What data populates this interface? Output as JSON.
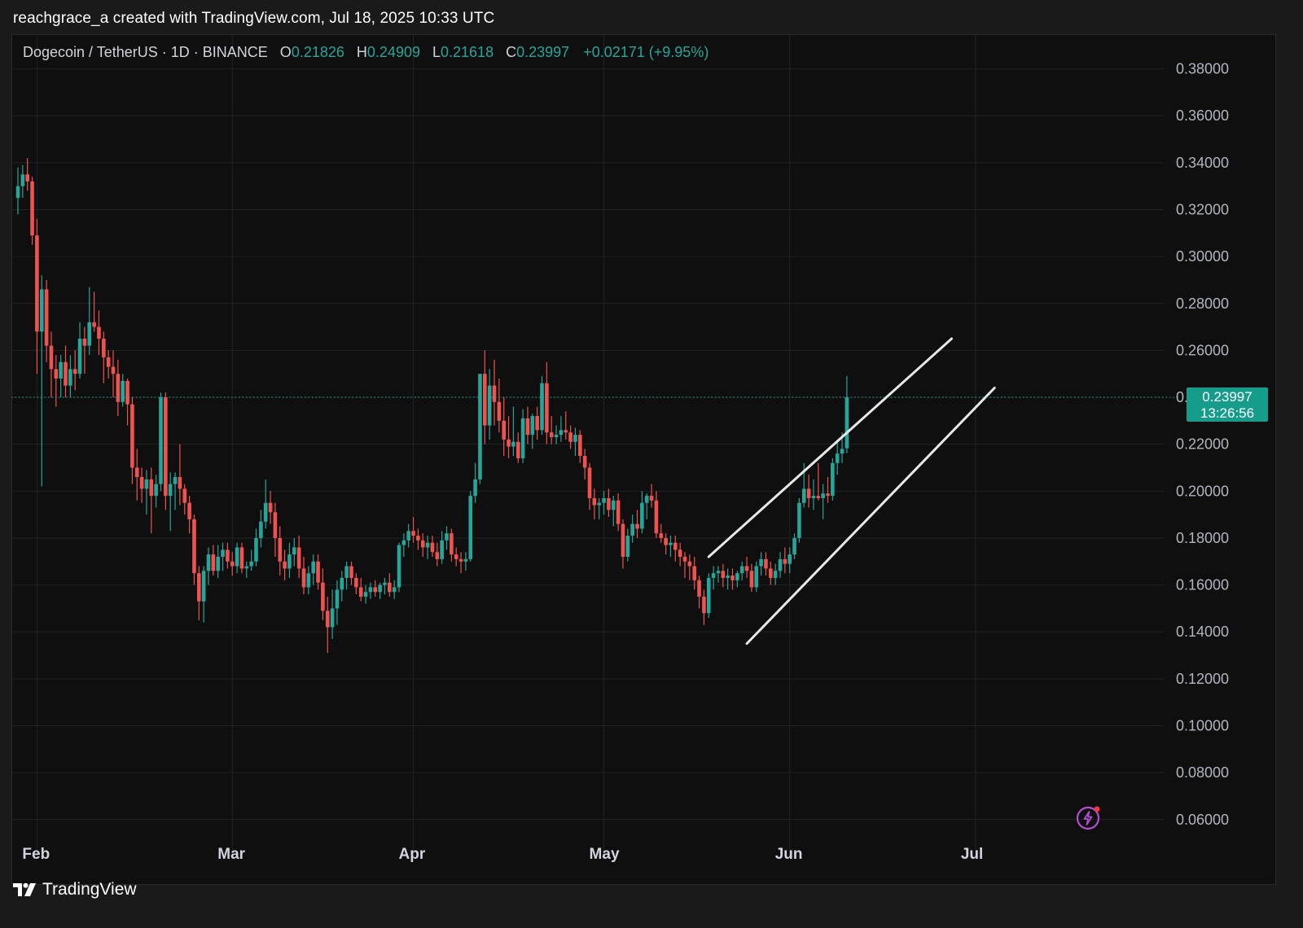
{
  "caption": "reachgrace_a created with TradingView.com, Jul 18, 2025 10:33 UTC",
  "legend": {
    "symbol": "Dogecoin / TetherUS · 1D · BINANCE",
    "open_key": "O",
    "open": "0.21826",
    "high_key": "H",
    "high": "0.24909",
    "low_key": "L",
    "low": "0.21618",
    "close_key": "C",
    "close": "0.23997",
    "change": "+0.02171 (+9.95%)"
  },
  "price_badge": {
    "price": "0.23997",
    "countdown": "13:26:56"
  },
  "footer": {
    "logo_text": "TradingView",
    "logo_icon": "tradingview-logo-icon"
  },
  "colors": {
    "up": "#26a69a",
    "down": "#ef5350",
    "background": "#0f0f0f",
    "grid": "#232323",
    "channel": "#e8e8e8",
    "badge": "#169c8a",
    "bolt": "#b04fd4"
  },
  "chart_data": {
    "type": "candlestick",
    "y_tick_labels": [
      "0.38000",
      "0.36000",
      "0.34000",
      "0.32000",
      "0.30000",
      "0.28000",
      "0.26000",
      "0.24000",
      "0.22000",
      "0.20000",
      "0.18000",
      "0.16000",
      "0.14000",
      "0.12000",
      "0.10000",
      "0.08000",
      "0.06000"
    ],
    "y_ticks": [
      0.38,
      0.36,
      0.34,
      0.32,
      0.3,
      0.28,
      0.26,
      0.24,
      0.22,
      0.2,
      0.18,
      0.16,
      0.14,
      0.12,
      0.1,
      0.08,
      0.06
    ],
    "x_tick_labels": [
      "Feb",
      "Mar",
      "Apr",
      "May",
      "Jun",
      "Jul"
    ],
    "ylim": [
      0.045,
      0.392
    ],
    "last_price": 0.23997,
    "channel": {
      "upper": [
        [
          145,
          0.172
        ],
        [
          196,
          0.265
        ]
      ],
      "lower": [
        [
          153,
          0.135
        ],
        [
          205,
          0.244
        ]
      ]
    },
    "candles_ohlc": [
      [
        0.325,
        0.338,
        0.318,
        0.33
      ],
      [
        0.33,
        0.339,
        0.325,
        0.335
      ],
      [
        0.335,
        0.342,
        0.328,
        0.332
      ],
      [
        0.332,
        0.334,
        0.305,
        0.309
      ],
      [
        0.309,
        0.316,
        0.25,
        0.268
      ],
      [
        0.268,
        0.292,
        0.202,
        0.286
      ],
      [
        0.286,
        0.29,
        0.255,
        0.262
      ],
      [
        0.262,
        0.268,
        0.24,
        0.252
      ],
      [
        0.252,
        0.258,
        0.236,
        0.248
      ],
      [
        0.248,
        0.258,
        0.24,
        0.255
      ],
      [
        0.255,
        0.262,
        0.24,
        0.245
      ],
      [
        0.245,
        0.258,
        0.24,
        0.252
      ],
      [
        0.252,
        0.26,
        0.243,
        0.25
      ],
      [
        0.25,
        0.272,
        0.248,
        0.265
      ],
      [
        0.265,
        0.27,
        0.25,
        0.262
      ],
      [
        0.262,
        0.287,
        0.258,
        0.272
      ],
      [
        0.272,
        0.285,
        0.268,
        0.27
      ],
      [
        0.27,
        0.277,
        0.258,
        0.265
      ],
      [
        0.265,
        0.268,
        0.246,
        0.257
      ],
      [
        0.257,
        0.26,
        0.248,
        0.253
      ],
      [
        0.253,
        0.26,
        0.24,
        0.25
      ],
      [
        0.25,
        0.256,
        0.232,
        0.238
      ],
      [
        0.238,
        0.25,
        0.236,
        0.247
      ],
      [
        0.247,
        0.248,
        0.228,
        0.237
      ],
      [
        0.237,
        0.24,
        0.203,
        0.21
      ],
      [
        0.21,
        0.218,
        0.196,
        0.206
      ],
      [
        0.206,
        0.21,
        0.195,
        0.201
      ],
      [
        0.201,
        0.209,
        0.19,
        0.205
      ],
      [
        0.205,
        0.21,
        0.182,
        0.198
      ],
      [
        0.198,
        0.207,
        0.193,
        0.203
      ],
      [
        0.203,
        0.242,
        0.2,
        0.24
      ],
      [
        0.24,
        0.242,
        0.192,
        0.198
      ],
      [
        0.198,
        0.208,
        0.183,
        0.203
      ],
      [
        0.203,
        0.208,
        0.192,
        0.206
      ],
      [
        0.206,
        0.22,
        0.194,
        0.201
      ],
      [
        0.201,
        0.203,
        0.19,
        0.195
      ],
      [
        0.195,
        0.198,
        0.182,
        0.188
      ],
      [
        0.188,
        0.19,
        0.16,
        0.165
      ],
      [
        0.165,
        0.168,
        0.145,
        0.153
      ],
      [
        0.153,
        0.168,
        0.144,
        0.166
      ],
      [
        0.166,
        0.176,
        0.16,
        0.173
      ],
      [
        0.173,
        0.177,
        0.164,
        0.166
      ],
      [
        0.166,
        0.177,
        0.163,
        0.172
      ],
      [
        0.172,
        0.178,
        0.166,
        0.175
      ],
      [
        0.175,
        0.178,
        0.167,
        0.17
      ],
      [
        0.17,
        0.174,
        0.164,
        0.168
      ],
      [
        0.168,
        0.178,
        0.165,
        0.176
      ],
      [
        0.176,
        0.178,
        0.165,
        0.167
      ],
      [
        0.167,
        0.17,
        0.163,
        0.168
      ],
      [
        0.168,
        0.175,
        0.166,
        0.17
      ],
      [
        0.17,
        0.184,
        0.168,
        0.18
      ],
      [
        0.18,
        0.192,
        0.176,
        0.187
      ],
      [
        0.187,
        0.205,
        0.184,
        0.195
      ],
      [
        0.195,
        0.2,
        0.186,
        0.191
      ],
      [
        0.191,
        0.195,
        0.172,
        0.18
      ],
      [
        0.18,
        0.185,
        0.164,
        0.17
      ],
      [
        0.17,
        0.175,
        0.162,
        0.167
      ],
      [
        0.167,
        0.178,
        0.163,
        0.173
      ],
      [
        0.173,
        0.18,
        0.168,
        0.176
      ],
      [
        0.176,
        0.181,
        0.163,
        0.167
      ],
      [
        0.167,
        0.172,
        0.156,
        0.159
      ],
      [
        0.159,
        0.168,
        0.156,
        0.165
      ],
      [
        0.165,
        0.173,
        0.16,
        0.17
      ],
      [
        0.17,
        0.173,
        0.158,
        0.161
      ],
      [
        0.161,
        0.167,
        0.145,
        0.149
      ],
      [
        0.149,
        0.155,
        0.131,
        0.142
      ],
      [
        0.142,
        0.158,
        0.137,
        0.15
      ],
      [
        0.15,
        0.162,
        0.143,
        0.158
      ],
      [
        0.158,
        0.166,
        0.153,
        0.163
      ],
      [
        0.163,
        0.17,
        0.158,
        0.168
      ],
      [
        0.168,
        0.17,
        0.16,
        0.163
      ],
      [
        0.163,
        0.165,
        0.156,
        0.159
      ],
      [
        0.159,
        0.163,
        0.153,
        0.155
      ],
      [
        0.155,
        0.16,
        0.152,
        0.157
      ],
      [
        0.157,
        0.161,
        0.154,
        0.159
      ],
      [
        0.159,
        0.162,
        0.155,
        0.157
      ],
      [
        0.157,
        0.161,
        0.154,
        0.16
      ],
      [
        0.16,
        0.163,
        0.156,
        0.161
      ],
      [
        0.161,
        0.165,
        0.155,
        0.157
      ],
      [
        0.157,
        0.162,
        0.154,
        0.159
      ],
      [
        0.159,
        0.178,
        0.157,
        0.177
      ],
      [
        0.177,
        0.182,
        0.172,
        0.179
      ],
      [
        0.179,
        0.186,
        0.176,
        0.183
      ],
      [
        0.183,
        0.189,
        0.178,
        0.181
      ],
      [
        0.181,
        0.184,
        0.175,
        0.179
      ],
      [
        0.179,
        0.182,
        0.172,
        0.176
      ],
      [
        0.176,
        0.181,
        0.171,
        0.178
      ],
      [
        0.178,
        0.181,
        0.172,
        0.174
      ],
      [
        0.174,
        0.178,
        0.168,
        0.171
      ],
      [
        0.171,
        0.183,
        0.169,
        0.179
      ],
      [
        0.179,
        0.185,
        0.175,
        0.182
      ],
      [
        0.182,
        0.184,
        0.17,
        0.173
      ],
      [
        0.173,
        0.176,
        0.168,
        0.171
      ],
      [
        0.171,
        0.174,
        0.165,
        0.17
      ],
      [
        0.17,
        0.174,
        0.166,
        0.171
      ],
      [
        0.171,
        0.2,
        0.17,
        0.198
      ],
      [
        0.198,
        0.212,
        0.195,
        0.205
      ],
      [
        0.205,
        0.25,
        0.203,
        0.25
      ],
      [
        0.25,
        0.26,
        0.22,
        0.228
      ],
      [
        0.228,
        0.252,
        0.222,
        0.245
      ],
      [
        0.245,
        0.256,
        0.228,
        0.238
      ],
      [
        0.238,
        0.248,
        0.225,
        0.23
      ],
      [
        0.23,
        0.24,
        0.215,
        0.222
      ],
      [
        0.222,
        0.232,
        0.214,
        0.219
      ],
      [
        0.219,
        0.236,
        0.215,
        0.221
      ],
      [
        0.221,
        0.225,
        0.212,
        0.214
      ],
      [
        0.214,
        0.235,
        0.212,
        0.231
      ],
      [
        0.231,
        0.236,
        0.22,
        0.224
      ],
      [
        0.224,
        0.233,
        0.218,
        0.232
      ],
      [
        0.232,
        0.236,
        0.222,
        0.226
      ],
      [
        0.226,
        0.249,
        0.224,
        0.246
      ],
      [
        0.246,
        0.255,
        0.22,
        0.225
      ],
      [
        0.225,
        0.232,
        0.22,
        0.223
      ],
      [
        0.223,
        0.228,
        0.22,
        0.224
      ],
      [
        0.224,
        0.232,
        0.221,
        0.226
      ],
      [
        0.226,
        0.234,
        0.222,
        0.225
      ],
      [
        0.225,
        0.228,
        0.218,
        0.221
      ],
      [
        0.221,
        0.227,
        0.215,
        0.224
      ],
      [
        0.224,
        0.226,
        0.212,
        0.215
      ],
      [
        0.215,
        0.218,
        0.205,
        0.21
      ],
      [
        0.21,
        0.212,
        0.192,
        0.197
      ],
      [
        0.197,
        0.201,
        0.188,
        0.194
      ],
      [
        0.194,
        0.197,
        0.188,
        0.195
      ],
      [
        0.195,
        0.2,
        0.19,
        0.197
      ],
      [
        0.197,
        0.201,
        0.189,
        0.192
      ],
      [
        0.192,
        0.198,
        0.185,
        0.196
      ],
      [
        0.196,
        0.199,
        0.183,
        0.186
      ],
      [
        0.186,
        0.188,
        0.167,
        0.172
      ],
      [
        0.172,
        0.184,
        0.17,
        0.181
      ],
      [
        0.181,
        0.19,
        0.178,
        0.186
      ],
      [
        0.186,
        0.192,
        0.18,
        0.184
      ],
      [
        0.184,
        0.2,
        0.182,
        0.195
      ],
      [
        0.195,
        0.199,
        0.188,
        0.198
      ],
      [
        0.198,
        0.203,
        0.193,
        0.196
      ],
      [
        0.196,
        0.2,
        0.18,
        0.182
      ],
      [
        0.182,
        0.186,
        0.178,
        0.18
      ],
      [
        0.18,
        0.182,
        0.173,
        0.177
      ],
      [
        0.177,
        0.181,
        0.172,
        0.178
      ],
      [
        0.178,
        0.181,
        0.17,
        0.175
      ],
      [
        0.175,
        0.178,
        0.168,
        0.172
      ],
      [
        0.172,
        0.174,
        0.163,
        0.17
      ],
      [
        0.17,
        0.173,
        0.162,
        0.168
      ],
      [
        0.168,
        0.172,
        0.158,
        0.162
      ],
      [
        0.162,
        0.164,
        0.15,
        0.155
      ],
      [
        0.155,
        0.158,
        0.143,
        0.148
      ],
      [
        0.148,
        0.165,
        0.146,
        0.163
      ],
      [
        0.163,
        0.168,
        0.158,
        0.165
      ],
      [
        0.165,
        0.168,
        0.161,
        0.166
      ],
      [
        0.166,
        0.169,
        0.159,
        0.163
      ],
      [
        0.163,
        0.167,
        0.158,
        0.164
      ],
      [
        0.164,
        0.167,
        0.158,
        0.162
      ],
      [
        0.162,
        0.166,
        0.159,
        0.165
      ],
      [
        0.165,
        0.17,
        0.162,
        0.168
      ],
      [
        0.168,
        0.172,
        0.163,
        0.166
      ],
      [
        0.166,
        0.169,
        0.157,
        0.159
      ],
      [
        0.159,
        0.17,
        0.157,
        0.168
      ],
      [
        0.168,
        0.174,
        0.164,
        0.171
      ],
      [
        0.171,
        0.174,
        0.164,
        0.167
      ],
      [
        0.167,
        0.17,
        0.16,
        0.163
      ],
      [
        0.163,
        0.169,
        0.16,
        0.166
      ],
      [
        0.166,
        0.174,
        0.163,
        0.171
      ],
      [
        0.171,
        0.176,
        0.165,
        0.169
      ],
      [
        0.169,
        0.176,
        0.165,
        0.173
      ],
      [
        0.173,
        0.182,
        0.171,
        0.18
      ],
      [
        0.18,
        0.197,
        0.178,
        0.195
      ],
      [
        0.195,
        0.212,
        0.193,
        0.201
      ],
      [
        0.201,
        0.207,
        0.193,
        0.197
      ],
      [
        0.197,
        0.205,
        0.192,
        0.198
      ],
      [
        0.198,
        0.212,
        0.196,
        0.197
      ],
      [
        0.197,
        0.203,
        0.188,
        0.199
      ],
      [
        0.199,
        0.206,
        0.195,
        0.198
      ],
      [
        0.198,
        0.214,
        0.196,
        0.212
      ],
      [
        0.212,
        0.222,
        0.207,
        0.216
      ],
      [
        0.216,
        0.225,
        0.212,
        0.218
      ],
      [
        0.21826,
        0.24909,
        0.21618,
        0.23997
      ]
    ]
  }
}
